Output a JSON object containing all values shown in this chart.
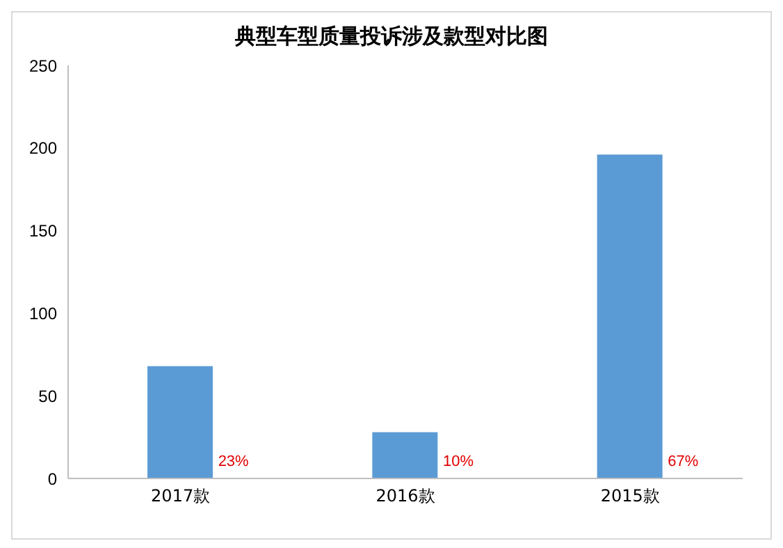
{
  "chart_data": {
    "type": "bar",
    "title": "典型车型质量投诉涉及款型对比图",
    "categories": [
      "2017款",
      "2016款",
      "2015款"
    ],
    "values": [
      68,
      28,
      196
    ],
    "color": "#5b9bd5",
    "ylim": [
      0,
      250
    ],
    "yticks": [
      0,
      50,
      100,
      150,
      200,
      250
    ],
    "grid": false,
    "legend": false,
    "annotations": [
      "23%",
      "10%",
      "67%"
    ]
  }
}
